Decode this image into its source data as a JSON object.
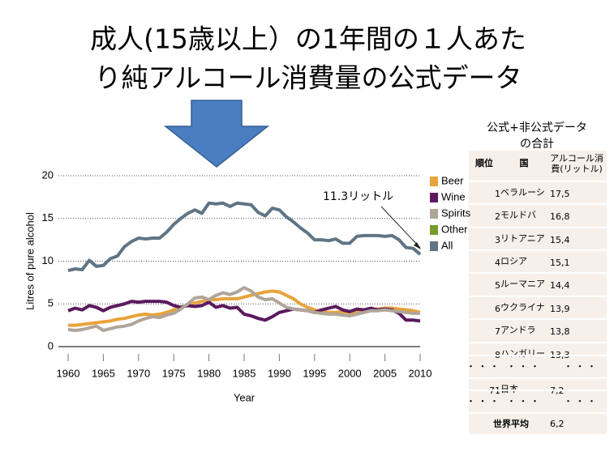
{
  "slide": {
    "title": [
      "成人(15歳以上）の1年間の１人あた",
      "り純アルコール消費量の公式データ"
    ],
    "table": {
      "caption": [
        "公式+非公式データ",
        "の合計"
      ],
      "header": [
        "順位",
        "国",
        [
          "アルコール消",
          "費(リットル)"
        ]
      ],
      "rows": [
        [
          "1",
          "ベラルーシ",
          "17,5"
        ],
        [
          "2",
          "モルドバ",
          "16,8"
        ],
        [
          "3",
          "リトアニア",
          "15,4"
        ],
        [
          "4",
          "ロシア",
          "15,1"
        ],
        [
          "5",
          "ルーマニア",
          "14,4"
        ],
        [
          "6",
          "ウクライナ",
          "13,9"
        ],
        [
          "7",
          "アンドラ",
          "13,8"
        ],
        [
          "8",
          "ハンガリー",
          "13,3"
        ],
        [
          "・ ・ ・",
          "・ ・ ・",
          "・ ・ ・"
        ],
        [
          "71",
          "日本",
          "7,2"
        ],
        [
          "・ ・ ・",
          "・ ・ ・",
          "・ ・ ・"
        ],
        [
          "世界平均",
          "6,2"
        ]
      ]
    }
  },
  "chart_data": {
    "type": "line",
    "xlabel": "Year",
    "ylabel": "Litres of pure alcohol",
    "annotation": "11.3リットル",
    "x": [
      1960,
      1961,
      1962,
      1963,
      1964,
      1965,
      1966,
      1967,
      1968,
      1969,
      1970,
      1971,
      1972,
      1973,
      1974,
      1975,
      1976,
      1977,
      1978,
      1979,
      1980,
      1981,
      1982,
      1983,
      1984,
      1985,
      1986,
      1987,
      1988,
      1989,
      1990,
      1991,
      1992,
      1993,
      1994,
      1995,
      1996,
      1997,
      1998,
      1999,
      2000,
      2001,
      2002,
      2003,
      2004,
      2005,
      2006,
      2007,
      2008,
      2009,
      2010
    ],
    "xlim": [
      1960,
      2010
    ],
    "xticks": [
      1960,
      1965,
      1970,
      1975,
      1980,
      1985,
      1990,
      1995,
      2000,
      2005,
      2010
    ],
    "ylim": [
      0,
      20
    ],
    "yticks": [
      0,
      5,
      10,
      15,
      20
    ],
    "grid": true,
    "legend": "right",
    "series": [
      {
        "name": "Beer",
        "color": "#e8a33a",
        "values": [
          2.5,
          2.5,
          2.6,
          2.7,
          2.8,
          2.9,
          3.0,
          3.2,
          3.3,
          3.5,
          3.7,
          3.8,
          3.7,
          3.8,
          4.0,
          4.3,
          4.6,
          4.9,
          5.1,
          5.3,
          5.5,
          5.5,
          5.6,
          5.6,
          5.6,
          5.8,
          6.0,
          6.2,
          6.4,
          6.5,
          6.4,
          6.0,
          5.6,
          5.0,
          4.6,
          4.3,
          4.1,
          4.0,
          4.0,
          4.1,
          4.0,
          4.1,
          4.3,
          4.4,
          4.4,
          4.5,
          4.5,
          4.4,
          4.3,
          4.2,
          4.0
        ]
      },
      {
        "name": "Wine",
        "color": "#5b1a5e",
        "values": [
          4.2,
          4.5,
          4.3,
          4.8,
          4.6,
          4.2,
          4.6,
          4.8,
          5.0,
          5.3,
          5.2,
          5.3,
          5.3,
          5.3,
          5.2,
          4.8,
          4.6,
          4.8,
          4.7,
          4.8,
          5.2,
          4.6,
          4.8,
          4.5,
          4.6,
          3.8,
          3.6,
          3.3,
          3.1,
          3.5,
          4.0,
          4.2,
          4.4,
          4.3,
          4.2,
          4.0,
          4.3,
          4.5,
          4.7,
          4.3,
          4.1,
          4.4,
          4.3,
          4.5,
          4.3,
          4.4,
          4.3,
          3.9,
          3.1,
          3.1,
          3.0
        ]
      },
      {
        "name": "Spirits",
        "color": "#b0a59a",
        "values": [
          2.0,
          1.9,
          2.0,
          2.2,
          2.4,
          1.9,
          2.1,
          2.3,
          2.4,
          2.6,
          3.0,
          3.3,
          3.5,
          3.4,
          3.7,
          3.9,
          4.4,
          5.0,
          5.7,
          5.8,
          5.5,
          6.0,
          6.3,
          6.1,
          6.4,
          6.9,
          6.5,
          5.8,
          5.5,
          5.6,
          5.1,
          4.6,
          4.4,
          4.3,
          4.2,
          4.0,
          3.9,
          3.8,
          3.8,
          3.7,
          3.6,
          3.8,
          4.0,
          4.2,
          4.2,
          4.3,
          4.2,
          4.1,
          4.0,
          3.9,
          3.9
        ]
      },
      {
        "name": "Other",
        "color": "#7a9a2a",
        "values": [
          null,
          null,
          null,
          null,
          null,
          null,
          null,
          null,
          null,
          null,
          null,
          null,
          null,
          null,
          null,
          null,
          null,
          null,
          null,
          null,
          null,
          null,
          null,
          null,
          null,
          null,
          null,
          null,
          null,
          null,
          null,
          null,
          null,
          null,
          null,
          null,
          null,
          null,
          null,
          null,
          null,
          null,
          null,
          null,
          null,
          null,
          null,
          null,
          null,
          null,
          null
        ]
      },
      {
        "name": "All",
        "color": "#5f7585",
        "values": [
          8.9,
          9.1,
          9.0,
          10.1,
          9.4,
          9.5,
          10.3,
          10.6,
          11.7,
          12.3,
          12.7,
          12.6,
          12.7,
          12.7,
          13.4,
          14.3,
          15.0,
          15.6,
          16.0,
          15.6,
          16.8,
          16.7,
          16.8,
          16.4,
          16.8,
          16.7,
          16.6,
          15.7,
          15.3,
          16.2,
          16.0,
          15.2,
          14.6,
          13.9,
          13.3,
          12.5,
          12.5,
          12.4,
          12.6,
          12.1,
          12.1,
          12.9,
          13.0,
          13.0,
          13.0,
          12.9,
          13.0,
          12.5,
          11.6,
          11.5,
          10.8
        ]
      }
    ]
  }
}
